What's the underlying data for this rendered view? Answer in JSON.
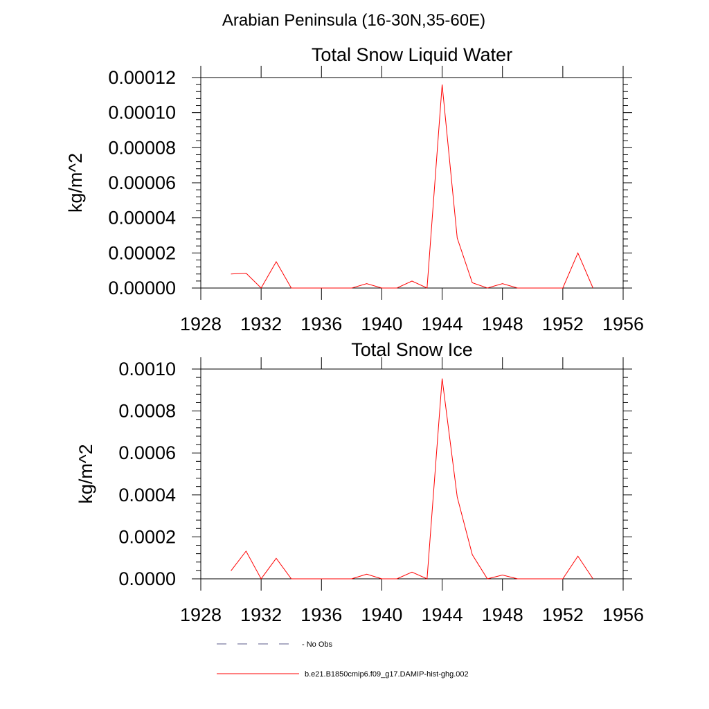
{
  "page": {
    "title": "Arabian Peninsula (16-30N,35-60E)"
  },
  "chart_data": [
    {
      "type": "line",
      "title": "Total Snow Liquid Water",
      "ylabel": "kg/m^2",
      "xlabel": "",
      "xlim": [
        1928,
        1956
      ],
      "xticks": [
        1928,
        1932,
        1936,
        1940,
        1944,
        1948,
        1952,
        1956
      ],
      "ylim": [
        0,
        0.00012
      ],
      "yticks": [
        0,
        2e-05,
        4e-05,
        6e-05,
        8e-05,
        0.0001,
        0.00012
      ],
      "ytick_labels": [
        "0.00000",
        "0.00002",
        "0.00004",
        "0.00006",
        "0.00008",
        "0.00010",
        "0.00012"
      ],
      "series": [
        {
          "name": "b.e21.B1850cmip6.f09_g17.DAMIP-hist-ghg.002",
          "color": "#ff0000",
          "x": [
            1930,
            1931,
            1932,
            1933,
            1934,
            1935,
            1936,
            1937,
            1938,
            1939,
            1940,
            1941,
            1942,
            1943,
            1944,
            1945,
            1946,
            1947,
            1948,
            1949,
            1950,
            1951,
            1952,
            1953,
            1954
          ],
          "values": [
            8e-06,
            8.5e-06,
            0,
            1.5e-05,
            0,
            0,
            0,
            0,
            0,
            2.5e-06,
            0,
            0,
            4e-06,
            0,
            0.000116,
            2.85e-05,
            3e-06,
            0,
            2.5e-06,
            0,
            0,
            0,
            0,
            2e-05,
            0
          ]
        }
      ]
    },
    {
      "type": "line",
      "title": "Total Snow Ice",
      "ylabel": "kg/m^2",
      "xlabel": "",
      "xlim": [
        1928,
        1956
      ],
      "xticks": [
        1928,
        1932,
        1936,
        1940,
        1944,
        1948,
        1952,
        1956
      ],
      "ylim": [
        0,
        0.001
      ],
      "yticks": [
        0,
        0.0002,
        0.0004,
        0.0006,
        0.0008,
        0.001
      ],
      "ytick_labels": [
        "0.0000",
        "0.0002",
        "0.0004",
        "0.0006",
        "0.0008",
        "0.0010"
      ],
      "series": [
        {
          "name": "b.e21.B1850cmip6.f09_g17.DAMIP-hist-ghg.002",
          "color": "#ff0000",
          "x": [
            1930,
            1931,
            1932,
            1933,
            1934,
            1935,
            1936,
            1937,
            1938,
            1939,
            1940,
            1941,
            1942,
            1943,
            1944,
            1945,
            1946,
            1947,
            1948,
            1949,
            1950,
            1951,
            1952,
            1953,
            1954
          ],
          "values": [
            3.8e-05,
            0.000132,
            0,
            9.8e-05,
            0,
            0,
            0,
            0,
            0,
            2.2e-05,
            0,
            0,
            3.2e-05,
            0,
            0.000955,
            0.00039,
            0.000115,
            0,
            1.8e-05,
            0,
            0,
            0,
            0,
            0.000108,
            0
          ]
        }
      ]
    }
  ],
  "legend": {
    "items": [
      {
        "label": "No Obs",
        "style": "dashed",
        "color": "#5a5a8a"
      },
      {
        "label": "b.e21.B1850cmip6.f09_g17.DAMIP-hist-ghg.002",
        "style": "solid",
        "color": "#ff0000"
      }
    ]
  }
}
